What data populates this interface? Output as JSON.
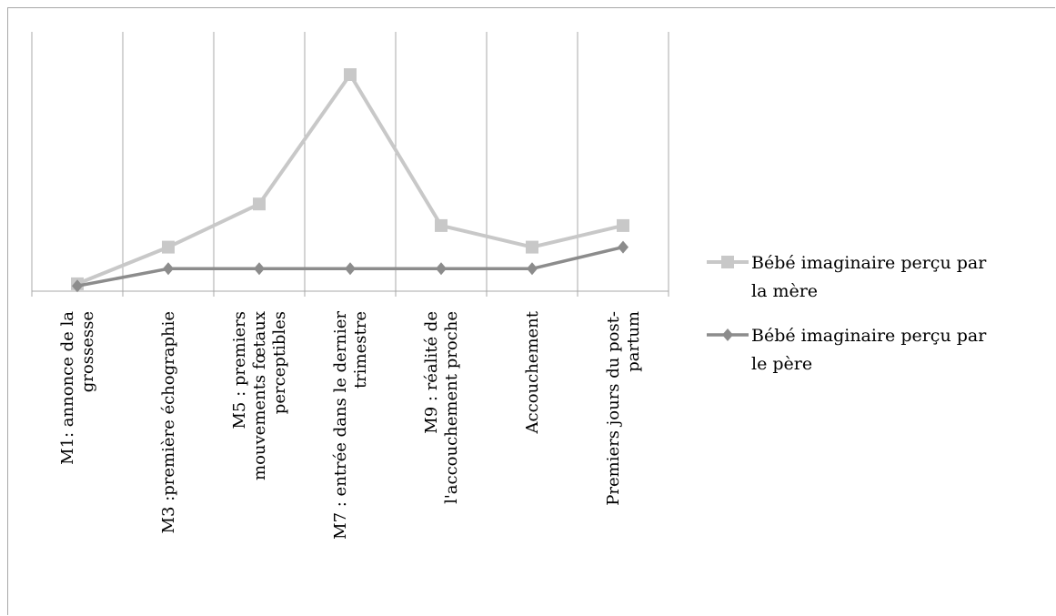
{
  "chart_data": {
    "type": "line",
    "title": "",
    "xlabel": "",
    "ylabel": "",
    "categories": [
      [
        "M1: annonce de la",
        "grossesse"
      ],
      [
        "M3 :première échographie"
      ],
      [
        "M5 : premiers",
        "mouvements fœtaux",
        "perceptibles"
      ],
      [
        "M7 : entrée dans le dernier",
        "trimestre"
      ],
      [
        "M9 : réalité de",
        "l'accouchement proche"
      ],
      [
        "Accouchement"
      ],
      [
        "Premiers jours du post-",
        "partum"
      ]
    ],
    "ylim": [
      0,
      10
    ],
    "grid": "vertical",
    "legend_position": "right",
    "series": [
      {
        "name": "Bébé imaginaire perçu par la mère",
        "name_lines": [
          "Bébé imaginaire perçu par",
          "la mère"
        ],
        "values": [
          0.3,
          2.0,
          4.0,
          10.0,
          3.0,
          2.0,
          3.0
        ],
        "color": "#c8c8c8",
        "marker": "square"
      },
      {
        "name": "Bébé imaginaire perçu par le père",
        "name_lines": [
          "Bébé imaginaire perçu par",
          "le père"
        ],
        "values": [
          0.2,
          1.0,
          1.0,
          1.0,
          1.0,
          1.0,
          2.0
        ],
        "color": "#8c8c8c",
        "marker": "diamond"
      }
    ]
  }
}
